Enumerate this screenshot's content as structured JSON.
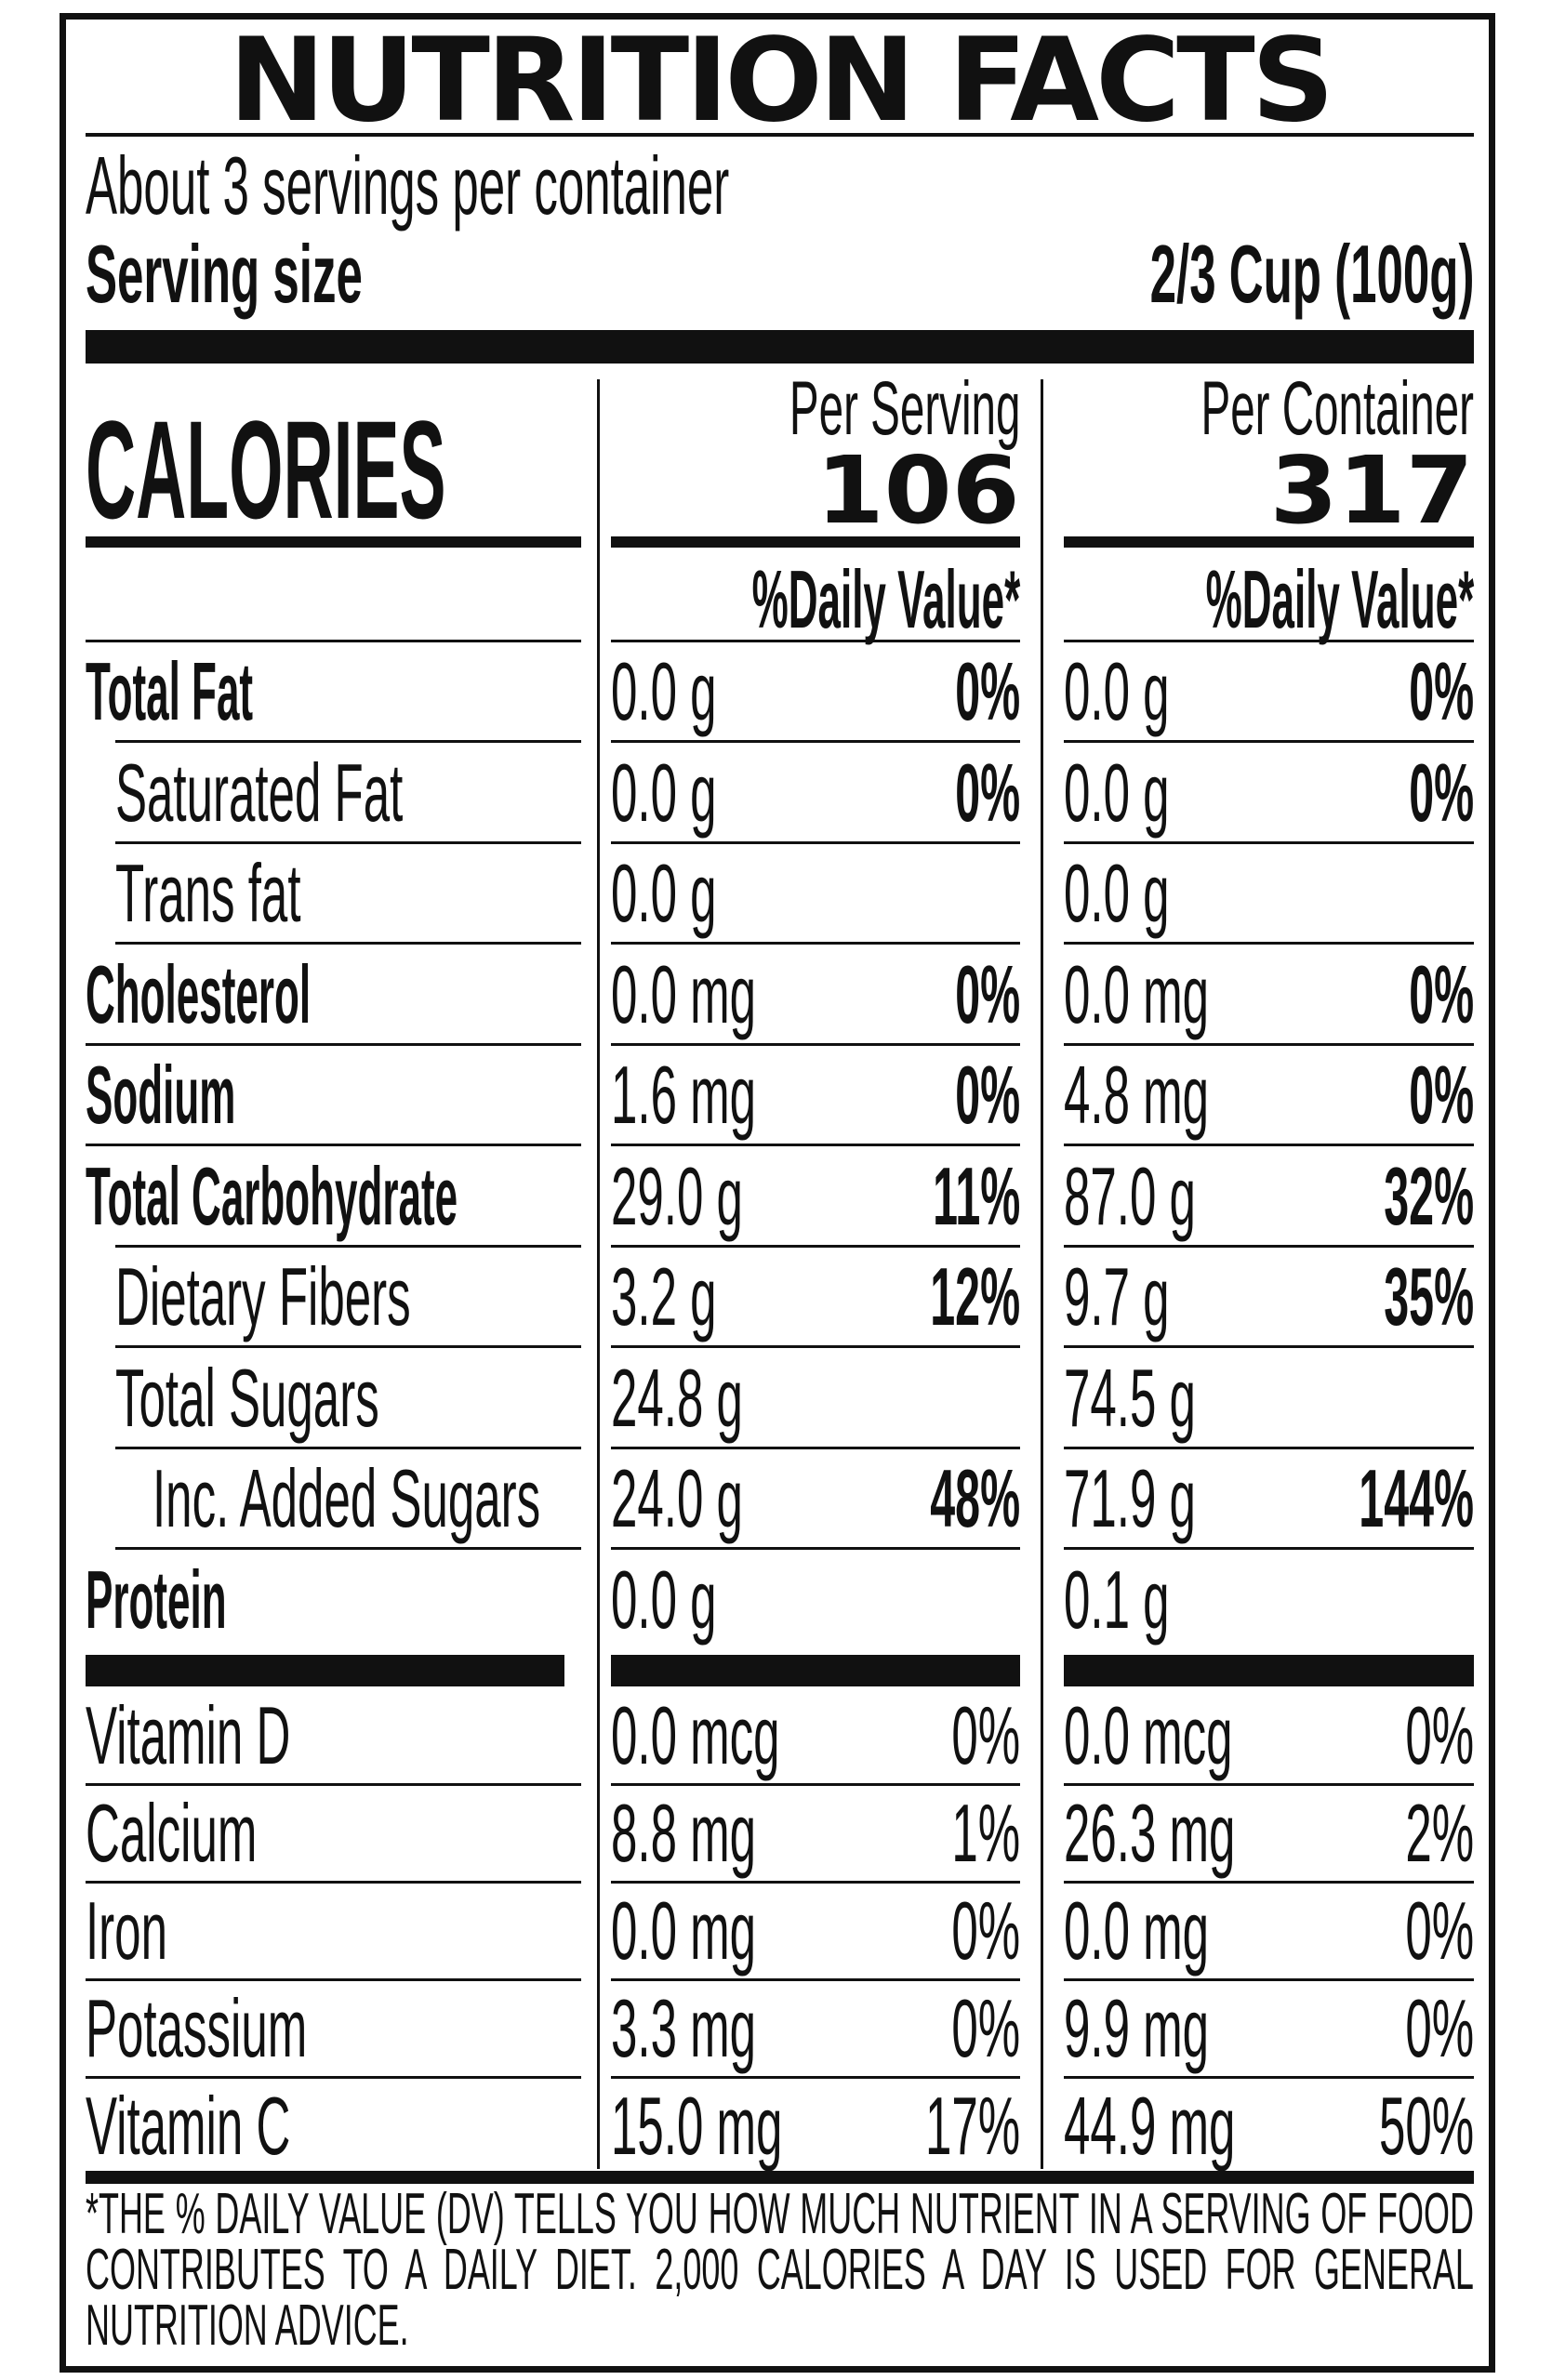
{
  "title": "NUTRITION FACTS",
  "servings_per_container": "About 3 servings per container",
  "serving_size_label": "Serving size",
  "serving_size_value": "2/3 Cup (100g)",
  "calories_label": "CALORIES",
  "per_serving": {
    "header": "Per Serving",
    "calories": "106",
    "dv_header": "%Daily Value*"
  },
  "per_container": {
    "header": "Per Container",
    "calories": "317",
    "dv_header": "%Daily Value*"
  },
  "nutrients": [
    {
      "label": "Total Fat",
      "bold": true,
      "indent": 0,
      "ps_amount": "0.0 g",
      "ps_dv": "0%",
      "pc_amount": "0.0 g",
      "pc_dv": "0%"
    },
    {
      "label": "Saturated Fat",
      "bold": false,
      "indent": 1,
      "ps_amount": "0.0 g",
      "ps_dv": "0%",
      "pc_amount": "0.0 g",
      "pc_dv": "0%"
    },
    {
      "label": "Trans fat",
      "bold": false,
      "indent": 1,
      "ps_amount": "0.0 g",
      "ps_dv": "",
      "pc_amount": "0.0 g",
      "pc_dv": ""
    },
    {
      "label": "Cholesterol",
      "bold": true,
      "indent": 0,
      "ps_amount": "0.0 mg",
      "ps_dv": "0%",
      "pc_amount": "0.0 mg",
      "pc_dv": "0%"
    },
    {
      "label": "Sodium",
      "bold": true,
      "indent": 0,
      "ps_amount": "1.6 mg",
      "ps_dv": "0%",
      "pc_amount": "4.8 mg",
      "pc_dv": "0%"
    },
    {
      "label": "Total Carbohydrate",
      "bold": true,
      "indent": 0,
      "ps_amount": "29.0 g",
      "ps_dv": "11%",
      "pc_amount": "87.0 g",
      "pc_dv": "32%"
    },
    {
      "label": "Dietary Fibers",
      "bold": false,
      "indent": 1,
      "ps_amount": "3.2 g",
      "ps_dv": "12%",
      "pc_amount": "9.7 g",
      "pc_dv": "35%"
    },
    {
      "label": "Total Sugars",
      "bold": false,
      "indent": 1,
      "ps_amount": "24.8 g",
      "ps_dv": "",
      "pc_amount": "74.5 g",
      "pc_dv": ""
    },
    {
      "label": "Inc. Added Sugars",
      "bold": false,
      "indent": 2,
      "ps_amount": "24.0 g",
      "ps_dv": "48%",
      "pc_amount": "71.9 g",
      "pc_dv": "144%"
    },
    {
      "label": "Protein",
      "bold": true,
      "indent": 0,
      "ps_amount": "0.0 g",
      "ps_dv": "",
      "pc_amount": "0.1 g",
      "pc_dv": ""
    }
  ],
  "vitamins": [
    {
      "label": "Vitamin D",
      "ps_amount": "0.0 mcg",
      "ps_dv": "0%",
      "pc_amount": "0.0 mcg",
      "pc_dv": "0%"
    },
    {
      "label": "Calcium",
      "ps_amount": "8.8 mg",
      "ps_dv": "1%",
      "pc_amount": "26.3 mg",
      "pc_dv": "2%"
    },
    {
      "label": "Iron",
      "ps_amount": "0.0 mg",
      "ps_dv": "0%",
      "pc_amount": "0.0 mg",
      "pc_dv": "0%"
    },
    {
      "label": "Potassium",
      "ps_amount": "3.3 mg",
      "ps_dv": "0%",
      "pc_amount": "9.9 mg",
      "pc_dv": "0%"
    },
    {
      "label": "Vitamin C",
      "ps_amount": "15.0 mg",
      "ps_dv": "17%",
      "pc_amount": "44.9 mg",
      "pc_dv": "50%"
    }
  ],
  "footnote": "*THE % DAILY VALUE (DV) TELLS YOU HOW MUCH NUTRIENT IN A SERVING OF FOOD CONTRIBUTES TO A DAILY DIET. 2,000 CALORIES A DAY IS USED FOR GENERAL NUTRITION ADVICE."
}
